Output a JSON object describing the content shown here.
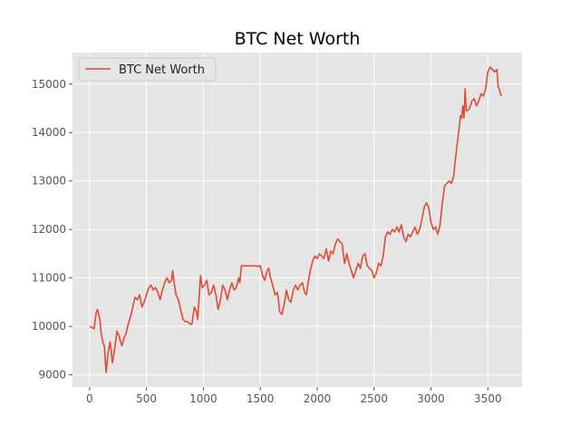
{
  "chart_data": {
    "type": "line",
    "title": "BTC Net Worth",
    "xlabel": "",
    "ylabel": "",
    "xlim": [
      -150,
      3800
    ],
    "ylim": [
      8750,
      15650
    ],
    "xticks": [
      0,
      500,
      1000,
      1500,
      2000,
      2500,
      3000,
      3500
    ],
    "yticks": [
      9000,
      10000,
      11000,
      12000,
      13000,
      14000,
      15000
    ],
    "grid": true,
    "legend_position": "top-left",
    "series": [
      {
        "name": "BTC Net Worth",
        "color": "#e24a33",
        "points": [
          [
            0,
            10000
          ],
          [
            20,
            9980
          ],
          [
            40,
            9950
          ],
          [
            50,
            10150
          ],
          [
            60,
            10300
          ],
          [
            70,
            10350
          ],
          [
            80,
            10250
          ],
          [
            90,
            10150
          ],
          [
            100,
            9900
          ],
          [
            110,
            9750
          ],
          [
            120,
            9650
          ],
          [
            130,
            9600
          ],
          [
            145,
            9050
          ],
          [
            160,
            9400
          ],
          [
            170,
            9550
          ],
          [
            180,
            9680
          ],
          [
            190,
            9500
          ],
          [
            200,
            9250
          ],
          [
            215,
            9450
          ],
          [
            230,
            9700
          ],
          [
            240,
            9900
          ],
          [
            260,
            9800
          ],
          [
            270,
            9700
          ],
          [
            285,
            9600
          ],
          [
            300,
            9750
          ],
          [
            320,
            9850
          ],
          [
            340,
            10050
          ],
          [
            360,
            10200
          ],
          [
            380,
            10400
          ],
          [
            400,
            10600
          ],
          [
            420,
            10550
          ],
          [
            440,
            10650
          ],
          [
            460,
            10400
          ],
          [
            480,
            10500
          ],
          [
            500,
            10650
          ],
          [
            520,
            10800
          ],
          [
            540,
            10850
          ],
          [
            560,
            10750
          ],
          [
            580,
            10800
          ],
          [
            600,
            10700
          ],
          [
            620,
            10550
          ],
          [
            640,
            10750
          ],
          [
            660,
            10900
          ],
          [
            680,
            11000
          ],
          [
            700,
            10900
          ],
          [
            720,
            10950
          ],
          [
            730,
            11150
          ],
          [
            740,
            10950
          ],
          [
            760,
            10650
          ],
          [
            780,
            10550
          ],
          [
            800,
            10350
          ],
          [
            820,
            10150
          ],
          [
            840,
            10100
          ],
          [
            860,
            10100
          ],
          [
            880,
            10050
          ],
          [
            900,
            10050
          ],
          [
            920,
            10400
          ],
          [
            940,
            10300
          ],
          [
            950,
            10150
          ],
          [
            960,
            10500
          ],
          [
            975,
            11050
          ],
          [
            990,
            10800
          ],
          [
            1010,
            10850
          ],
          [
            1030,
            10950
          ],
          [
            1050,
            10650
          ],
          [
            1070,
            10700
          ],
          [
            1090,
            10850
          ],
          [
            1110,
            10650
          ],
          [
            1130,
            10350
          ],
          [
            1150,
            10550
          ],
          [
            1170,
            10850
          ],
          [
            1190,
            10750
          ],
          [
            1210,
            10550
          ],
          [
            1230,
            10750
          ],
          [
            1250,
            10900
          ],
          [
            1270,
            10750
          ],
          [
            1290,
            10800
          ],
          [
            1310,
            11000
          ],
          [
            1320,
            10900
          ],
          [
            1335,
            11250
          ],
          [
            1360,
            11250
          ],
          [
            1400,
            11250
          ],
          [
            1440,
            11250
          ],
          [
            1480,
            11240
          ],
          [
            1500,
            11250
          ],
          [
            1520,
            11050
          ],
          [
            1540,
            10950
          ],
          [
            1560,
            11150
          ],
          [
            1575,
            11200
          ],
          [
            1590,
            11000
          ],
          [
            1610,
            10850
          ],
          [
            1630,
            10650
          ],
          [
            1650,
            10700
          ],
          [
            1660,
            10550
          ],
          [
            1670,
            10300
          ],
          [
            1690,
            10250
          ],
          [
            1710,
            10450
          ],
          [
            1730,
            10750
          ],
          [
            1750,
            10550
          ],
          [
            1770,
            10500
          ],
          [
            1790,
            10750
          ],
          [
            1810,
            10850
          ],
          [
            1830,
            10750
          ],
          [
            1850,
            10850
          ],
          [
            1870,
            10900
          ],
          [
            1890,
            10700
          ],
          [
            1905,
            10650
          ],
          [
            1920,
            10900
          ],
          [
            1940,
            11150
          ],
          [
            1960,
            11350
          ],
          [
            1980,
            11450
          ],
          [
            2000,
            11400
          ],
          [
            2020,
            11500
          ],
          [
            2040,
            11450
          ],
          [
            2060,
            11400
          ],
          [
            2080,
            11600
          ],
          [
            2100,
            11350
          ],
          [
            2120,
            11550
          ],
          [
            2140,
            11500
          ],
          [
            2160,
            11700
          ],
          [
            2180,
            11800
          ],
          [
            2200,
            11750
          ],
          [
            2220,
            11700
          ],
          [
            2240,
            11300
          ],
          [
            2260,
            11500
          ],
          [
            2280,
            11300
          ],
          [
            2300,
            11150
          ],
          [
            2320,
            11000
          ],
          [
            2340,
            11150
          ],
          [
            2360,
            11300
          ],
          [
            2380,
            11200
          ],
          [
            2400,
            11450
          ],
          [
            2420,
            11500
          ],
          [
            2440,
            11250
          ],
          [
            2460,
            11200
          ],
          [
            2480,
            11150
          ],
          [
            2500,
            11000
          ],
          [
            2520,
            11100
          ],
          [
            2540,
            11300
          ],
          [
            2560,
            11250
          ],
          [
            2580,
            11450
          ],
          [
            2600,
            11850
          ],
          [
            2620,
            11950
          ],
          [
            2640,
            11900
          ],
          [
            2660,
            12000
          ],
          [
            2680,
            11950
          ],
          [
            2700,
            12050
          ],
          [
            2720,
            11950
          ],
          [
            2740,
            12100
          ],
          [
            2760,
            11850
          ],
          [
            2780,
            11750
          ],
          [
            2800,
            11900
          ],
          [
            2820,
            11850
          ],
          [
            2840,
            11950
          ],
          [
            2860,
            12050
          ],
          [
            2880,
            11900
          ],
          [
            2900,
            12000
          ],
          [
            2920,
            12200
          ],
          [
            2940,
            12450
          ],
          [
            2960,
            12550
          ],
          [
            2980,
            12450
          ],
          [
            3000,
            12150
          ],
          [
            3020,
            12000
          ],
          [
            3040,
            12050
          ],
          [
            3060,
            11900
          ],
          [
            3080,
            12100
          ],
          [
            3100,
            12550
          ],
          [
            3120,
            12900
          ],
          [
            3140,
            12950
          ],
          [
            3160,
            13000
          ],
          [
            3180,
            12950
          ],
          [
            3200,
            13100
          ],
          [
            3210,
            13350
          ],
          [
            3220,
            13550
          ],
          [
            3240,
            13950
          ],
          [
            3260,
            14350
          ],
          [
            3270,
            14300
          ],
          [
            3280,
            14550
          ],
          [
            3290,
            14300
          ],
          [
            3300,
            14900
          ],
          [
            3310,
            14450
          ],
          [
            3320,
            14450
          ],
          [
            3340,
            14500
          ],
          [
            3360,
            14650
          ],
          [
            3380,
            14700
          ],
          [
            3400,
            14550
          ],
          [
            3420,
            14650
          ],
          [
            3440,
            14800
          ],
          [
            3460,
            14750
          ],
          [
            3480,
            14900
          ],
          [
            3500,
            15250
          ],
          [
            3520,
            15350
          ],
          [
            3540,
            15300
          ],
          [
            3560,
            15250
          ],
          [
            3580,
            15300
          ],
          [
            3590,
            14950
          ],
          [
            3600,
            14900
          ],
          [
            3610,
            14800
          ],
          [
            3620,
            14750
          ]
        ]
      }
    ]
  }
}
